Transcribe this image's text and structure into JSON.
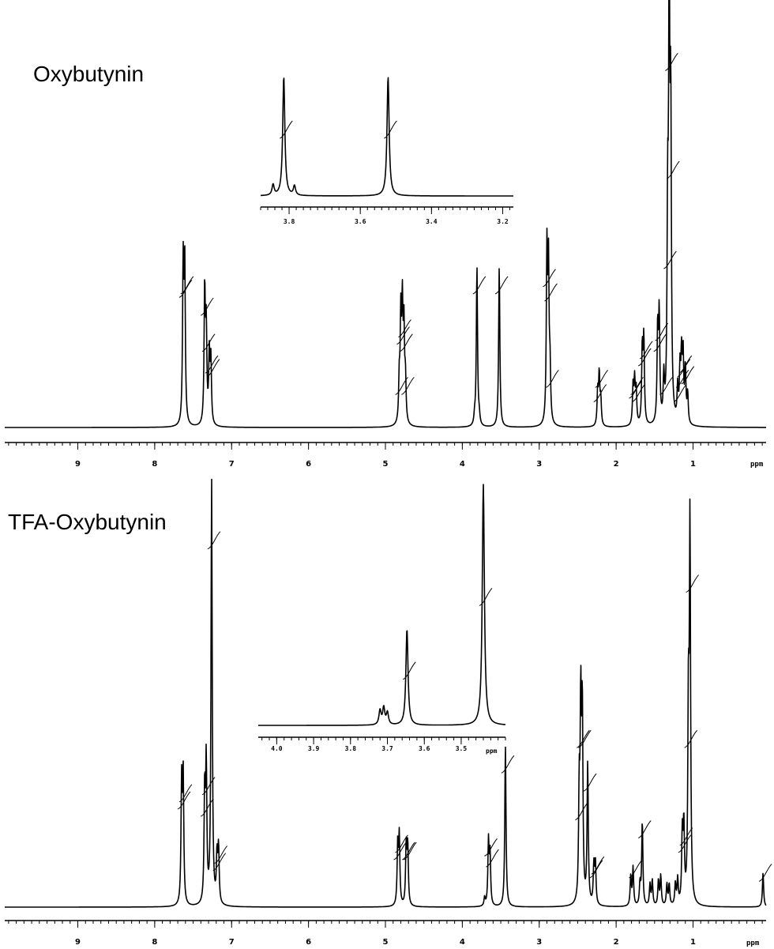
{
  "chart_data": [
    {
      "type": "line",
      "title": "Oxybutynin",
      "xlabel": "ppm",
      "xlim": [
        9.95,
        0.05
      ],
      "x_ticks": [
        9,
        8,
        7,
        6,
        5,
        4,
        3,
        2,
        1
      ],
      "peaks": [
        {
          "ppm": 7.63,
          "height": 0.37
        },
        {
          "ppm": 7.61,
          "height": 0.38
        },
        {
          "ppm": 7.35,
          "height": 0.32
        },
        {
          "ppm": 7.33,
          "height": 0.22
        },
        {
          "ppm": 7.29,
          "height": 0.16
        },
        {
          "ppm": 7.27,
          "height": 0.15
        },
        {
          "ppm": 4.82,
          "height": 0.1
        },
        {
          "ppm": 4.8,
          "height": 0.24
        },
        {
          "ppm": 4.78,
          "height": 0.26
        },
        {
          "ppm": 4.76,
          "height": 0.22
        },
        {
          "ppm": 4.74,
          "height": 0.1
        },
        {
          "ppm": 3.84,
          "height": 0.02
        },
        {
          "ppm": 3.81,
          "height": 0.38
        },
        {
          "ppm": 3.78,
          "height": 0.02
        },
        {
          "ppm": 3.52,
          "height": 0.38
        },
        {
          "ppm": 2.9,
          "height": 0.4
        },
        {
          "ppm": 2.88,
          "height": 0.36
        },
        {
          "ppm": 2.86,
          "height": 0.12
        },
        {
          "ppm": 2.24,
          "height": 0.08
        },
        {
          "ppm": 2.22,
          "height": 0.12
        },
        {
          "ppm": 2.2,
          "height": 0.06
        },
        {
          "ppm": 1.78,
          "height": 0.09
        },
        {
          "ppm": 1.76,
          "height": 0.1
        },
        {
          "ppm": 1.74,
          "height": 0.08
        },
        {
          "ppm": 1.66,
          "height": 0.18
        },
        {
          "ppm": 1.64,
          "height": 0.2
        },
        {
          "ppm": 1.46,
          "height": 0.22
        },
        {
          "ppm": 1.44,
          "height": 0.25
        },
        {
          "ppm": 1.38,
          "height": 0.1
        },
        {
          "ppm": 1.33,
          "height": 0.45
        },
        {
          "ppm": 1.31,
          "height": 1.0
        },
        {
          "ppm": 1.29,
          "height": 0.7
        },
        {
          "ppm": 1.2,
          "height": 0.08
        },
        {
          "ppm": 1.17,
          "height": 0.12
        },
        {
          "ppm": 1.15,
          "height": 0.15
        },
        {
          "ppm": 1.13,
          "height": 0.16
        },
        {
          "ppm": 1.1,
          "height": 0.13
        },
        {
          "ppm": 1.07,
          "height": 0.07
        }
      ],
      "inset": {
        "xlim": [
          3.88,
          3.17
        ],
        "x_ticks": [
          3.8,
          3.6,
          3.4,
          3.2
        ],
        "peaks": [
          {
            "ppm": 3.845,
            "height": 0.09
          },
          {
            "ppm": 3.815,
            "height": 1.0
          },
          {
            "ppm": 3.785,
            "height": 0.08
          },
          {
            "ppm": 3.522,
            "height": 1.0
          }
        ]
      }
    },
    {
      "type": "line",
      "title": "TFA-Oxybutynin",
      "xlabel": "ppm",
      "xlim": [
        9.95,
        0.05
      ],
      "x_ticks": [
        9,
        8,
        7,
        6,
        5,
        4,
        3,
        2,
        1
      ],
      "peaks": [
        {
          "ppm": 7.65,
          "height": 0.28
        },
        {
          "ppm": 7.63,
          "height": 0.3
        },
        {
          "ppm": 7.35,
          "height": 0.26
        },
        {
          "ppm": 7.33,
          "height": 0.32
        },
        {
          "ppm": 7.26,
          "height": 1.0
        },
        {
          "ppm": 7.19,
          "height": 0.11
        },
        {
          "ppm": 7.17,
          "height": 0.13
        },
        {
          "ppm": 4.84,
          "height": 0.14
        },
        {
          "ppm": 4.82,
          "height": 0.16
        },
        {
          "ppm": 4.73,
          "height": 0.14
        },
        {
          "ppm": 4.71,
          "height": 0.14
        },
        {
          "ppm": 3.71,
          "height": 0.02
        },
        {
          "ppm": 3.66,
          "height": 0.15
        },
        {
          "ppm": 3.64,
          "height": 0.12
        },
        {
          "ppm": 3.44,
          "height": 0.38
        },
        {
          "ppm": 2.48,
          "height": 0.25
        },
        {
          "ppm": 2.46,
          "height": 0.45
        },
        {
          "ppm": 2.44,
          "height": 0.45
        },
        {
          "ppm": 2.37,
          "height": 0.33
        },
        {
          "ppm": 2.29,
          "height": 0.09
        },
        {
          "ppm": 2.27,
          "height": 0.1
        },
        {
          "ppm": 1.81,
          "height": 0.07
        },
        {
          "ppm": 1.78,
          "height": 0.09
        },
        {
          "ppm": 1.69,
          "height": 0.05
        },
        {
          "ppm": 1.66,
          "height": 0.2
        },
        {
          "ppm": 1.56,
          "height": 0.05
        },
        {
          "ppm": 1.53,
          "height": 0.06
        },
        {
          "ppm": 1.45,
          "height": 0.06
        },
        {
          "ppm": 1.42,
          "height": 0.07
        },
        {
          "ppm": 1.34,
          "height": 0.05
        },
        {
          "ppm": 1.31,
          "height": 0.05
        },
        {
          "ppm": 1.23,
          "height": 0.05
        },
        {
          "ppm": 1.2,
          "height": 0.06
        },
        {
          "ppm": 1.14,
          "height": 0.16
        },
        {
          "ppm": 1.12,
          "height": 0.18
        },
        {
          "ppm": 1.06,
          "height": 0.45
        },
        {
          "ppm": 1.04,
          "height": 0.88
        },
        {
          "ppm": 0.09,
          "height": 0.08
        }
      ],
      "inset": {
        "xlim": [
          4.05,
          3.38
        ],
        "x_ticks": [
          4.0,
          3.9,
          3.8,
          3.7,
          3.6,
          3.5
        ],
        "xlabel": "ppm",
        "peaks": [
          {
            "ppm": 3.72,
            "height": 0.06
          },
          {
            "ppm": 3.71,
            "height": 0.07
          },
          {
            "ppm": 3.7,
            "height": 0.05
          },
          {
            "ppm": 3.647,
            "height": 0.4
          },
          {
            "ppm": 3.44,
            "height": 1.0
          }
        ]
      }
    }
  ]
}
